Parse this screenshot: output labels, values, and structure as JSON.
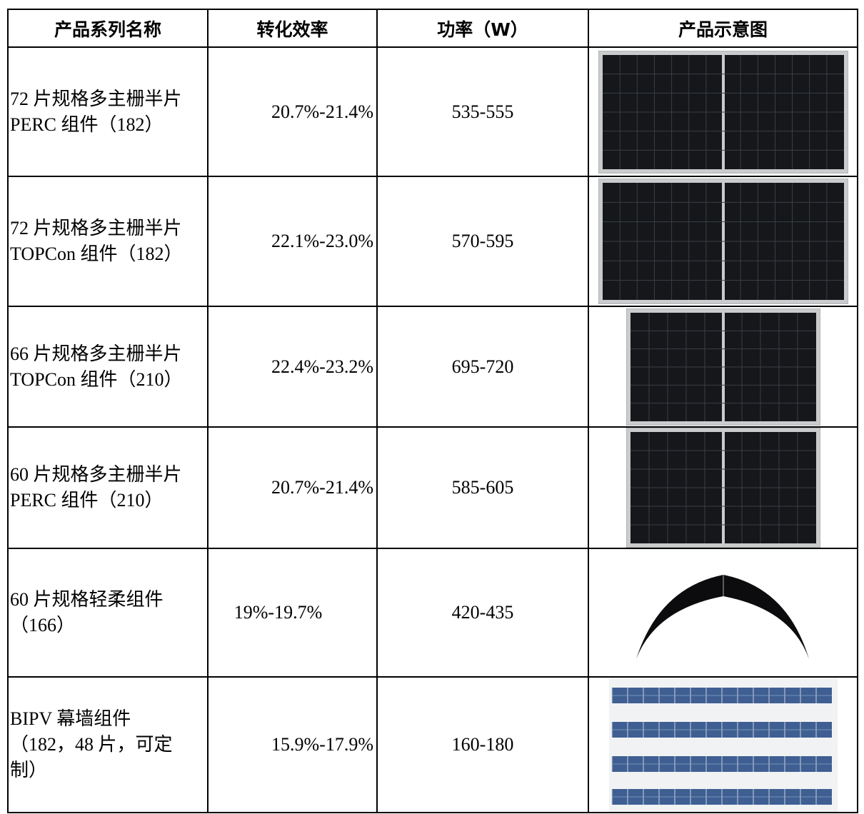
{
  "table": {
    "header": [
      "产品系列名称",
      "转化效率",
      "功率（W）",
      "产品示意图"
    ],
    "rows": [
      {
        "name_lines": [
          "72 片规格多主栅半片",
          "PERC 组件（182）"
        ],
        "efficiency": "20.7%-21.4%",
        "power": "535-555"
      },
      {
        "name_lines": [
          "72 片规格多主栅半片",
          "TOPCon 组件（182）"
        ],
        "efficiency": "22.1%-23.0%",
        "power": "570-595"
      },
      {
        "name_lines": [
          "66 片规格多主栅半片",
          "TOPCon 组件（210）"
        ],
        "efficiency": "22.4%-23.2%",
        "power": "695-720"
      },
      {
        "name_lines": [
          "60 片规格多主栅半片",
          "PERC 组件（210）"
        ],
        "efficiency": "20.7%-21.4%",
        "power": "585-605"
      },
      {
        "name_lines": [
          "60 片规格轻柔组件",
          "（166）"
        ],
        "efficiency": "19%-19.7%",
        "power": "420-435"
      },
      {
        "name_lines": [
          "BIPV 幕墙组件",
          "（182，48 片，可定",
          "制）"
        ],
        "efficiency": "15.9%-17.9%",
        "power": "160-180"
      }
    ]
  }
}
